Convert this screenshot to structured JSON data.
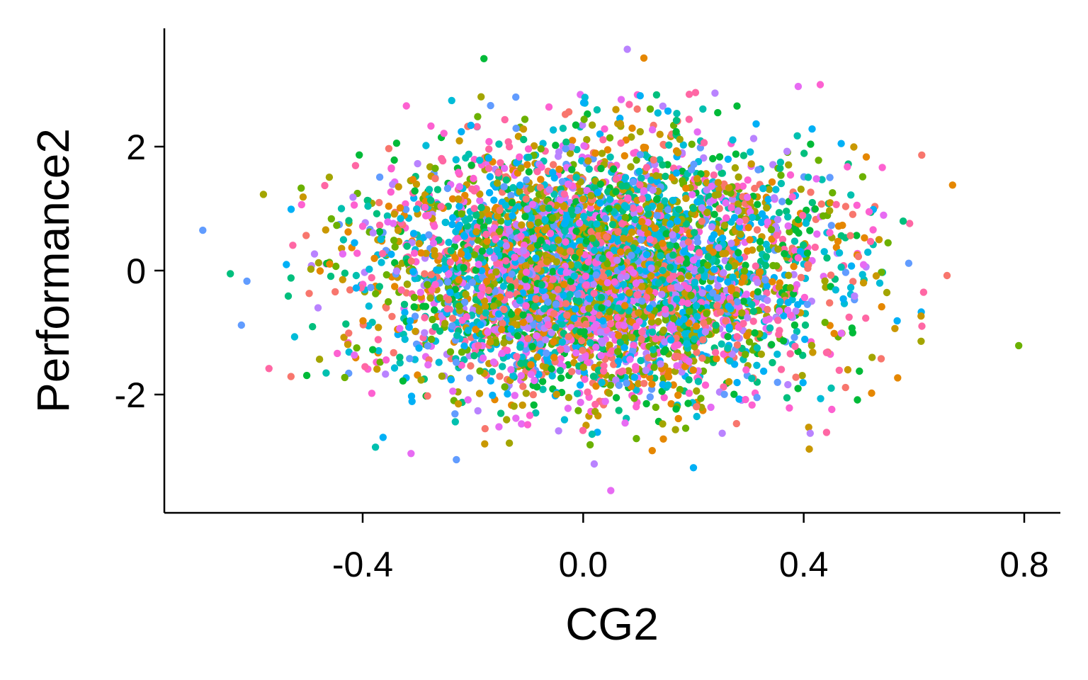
{
  "chart_data": {
    "type": "scatter",
    "title": "",
    "xlabel": "CG2",
    "ylabel": "Performance2",
    "xlim": [
      -0.72,
      0.86
    ],
    "ylim": [
      -3.9,
      3.9
    ],
    "xticks": [
      -0.4,
      0.0,
      0.4,
      0.8
    ],
    "xtick_labels": [
      "-0.4",
      "0.0",
      "0.4",
      "0.8"
    ],
    "yticks": [
      -2,
      0,
      2
    ],
    "ytick_labels": [
      "-2",
      "0",
      "2"
    ],
    "grid": false,
    "legend": "none",
    "palette": [
      "#F8766D",
      "#E58700",
      "#C99800",
      "#A3A500",
      "#6BB100",
      "#00BA38",
      "#00BF7D",
      "#00C0AF",
      "#00BCD8",
      "#00B0F6",
      "#619CFF",
      "#B983FF",
      "#E76BF3",
      "#FD61D1",
      "#FF67A4"
    ],
    "distribution": {
      "n_points": 5000,
      "x_mean": 0.03,
      "x_sd": 0.2,
      "y_mean": 0.0,
      "y_sd": 1.0
    },
    "outliers": [
      {
        "x": -0.69,
        "y": 0.65,
        "color": "#619CFF"
      },
      {
        "x": -0.64,
        "y": -0.05,
        "color": "#00BF7D"
      },
      {
        "x": -0.61,
        "y": -0.17,
        "color": "#619CFF"
      },
      {
        "x": -0.62,
        "y": -0.88,
        "color": "#619CFF"
      },
      {
        "x": -0.58,
        "y": 1.23,
        "color": "#A3A500"
      },
      {
        "x": -0.57,
        "y": -1.58,
        "color": "#FF67A4"
      },
      {
        "x": -0.53,
        "y": -1.71,
        "color": "#F8766D"
      },
      {
        "x": 0.79,
        "y": -1.21,
        "color": "#6BB100"
      },
      {
        "x": 0.67,
        "y": 1.38,
        "color": "#E58700"
      },
      {
        "x": 0.66,
        "y": -0.08,
        "color": "#F8766D"
      },
      {
        "x": 0.08,
        "y": 3.57,
        "color": "#B983FF"
      },
      {
        "x": 0.11,
        "y": 3.43,
        "color": "#E58700"
      },
      {
        "x": -0.18,
        "y": 3.42,
        "color": "#00BA38"
      },
      {
        "x": 0.05,
        "y": -3.55,
        "color": "#E76BF3"
      },
      {
        "x": 0.2,
        "y": -3.18,
        "color": "#00B0F6"
      },
      {
        "x": 0.02,
        "y": -3.12,
        "color": "#B983FF"
      },
      {
        "x": 0.41,
        "y": -2.88,
        "color": "#C99800"
      },
      {
        "x": -0.23,
        "y": -3.05,
        "color": "#619CFF"
      },
      {
        "x": 0.43,
        "y": 3.0,
        "color": "#FD61D1"
      },
      {
        "x": 0.39,
        "y": 2.97,
        "color": "#E76BF3"
      }
    ]
  }
}
